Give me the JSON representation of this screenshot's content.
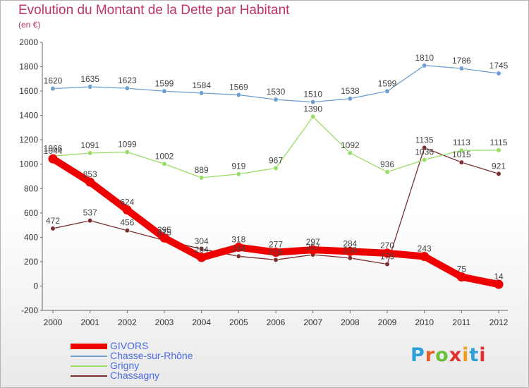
{
  "header": {
    "title": "Evolution du Montant de la Dette par Habitant",
    "subtitle": "(en €)"
  },
  "logo": {
    "text": "Proxiti",
    "colors": [
      "#2f9fd8",
      "#e85d2a",
      "#6bbf3a",
      "#e03030",
      "#f0a020",
      "#2f9fd8",
      "#e03030"
    ]
  },
  "chart_data": {
    "type": "line",
    "x": [
      "2000",
      "2001",
      "2002",
      "2003",
      "2004",
      "2005",
      "2006",
      "2007",
      "2008",
      "2009",
      "2010",
      "2011",
      "2012"
    ],
    "ylim": [
      -200,
      2000
    ],
    "yticks": [
      -200,
      0,
      200,
      400,
      600,
      800,
      1000,
      1200,
      1400,
      1600,
      1800,
      2000
    ],
    "ytick_labels": [
      "-200",
      "0",
      "200",
      "400",
      "600",
      "800",
      "1000",
      "1200",
      "1400",
      "1600",
      "1800",
      "2000"
    ],
    "grid": false,
    "legend_position": "bottom-left",
    "series": [
      {
        "name": "GIVORS",
        "color": "#ee0000",
        "values": [
          1044,
          853,
          624,
          395,
          234,
          318,
          277,
          297,
          284,
          270,
          243,
          75,
          14
        ],
        "labels": [
          "1044",
          "853",
          "624",
          "395",
          "234",
          "318",
          "277",
          "297",
          "284",
          "270",
          "243",
          "75",
          "14"
        ]
      },
      {
        "name": "Chasse-sur-Rhône",
        "color": "#6e9fce",
        "values": [
          1620,
          1635,
          1623,
          1599,
          1584,
          1569,
          1530,
          1510,
          1538,
          1599,
          1810,
          1786,
          1745
        ],
        "labels": [
          "1620",
          "1635",
          "1623",
          "1599",
          "1584",
          "1569",
          "1530",
          "1510",
          "1538",
          "1599",
          "1810",
          "1786",
          "1745"
        ]
      },
      {
        "name": "Grigny",
        "color": "#99dd66",
        "values": [
          1066,
          1091,
          1099,
          1002,
          889,
          919,
          967,
          1390,
          1092,
          936,
          1036,
          1113,
          1115
        ],
        "labels": [
          "1066",
          "1091",
          "1099",
          "1002",
          "889",
          "919",
          "967",
          "1390",
          "1092",
          "936",
          "1036",
          "1113",
          "1115"
        ]
      },
      {
        "name": "Chassagny",
        "color": "#7a3030",
        "values": [
          472,
          537,
          456,
          375,
          304,
          244,
          215,
          257,
          230,
          179,
          1135,
          1015,
          921
        ],
        "labels": [
          "472",
          "537",
          "456",
          "375",
          "304",
          "244",
          "215",
          "257",
          "230",
          "179",
          "1135",
          "1015",
          "921"
        ]
      }
    ]
  }
}
